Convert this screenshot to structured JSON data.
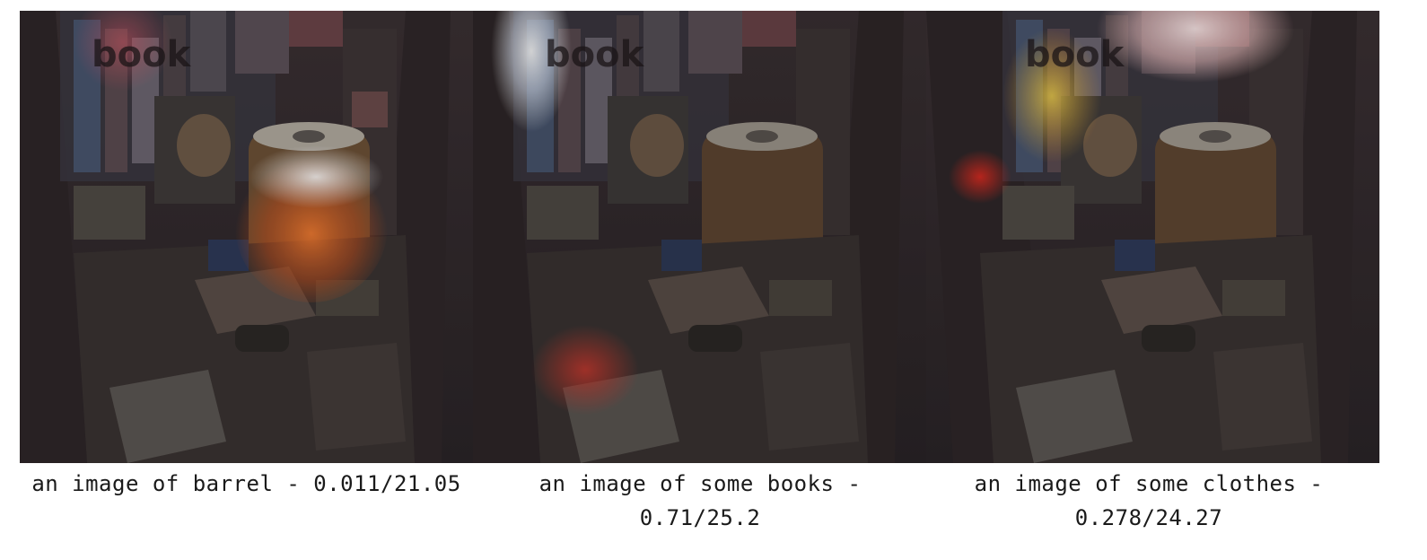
{
  "panels": [
    {
      "caption": "an image of barrel - 0.011/21.05",
      "watermark": "book",
      "highlight": "barrel"
    },
    {
      "caption": "an image of some books - 0.71/25.2",
      "watermark": "book",
      "highlight": "books"
    },
    {
      "caption": "an image of some clothes - 0.278/24.27",
      "watermark": "book",
      "highlight": "clothes"
    }
  ]
}
